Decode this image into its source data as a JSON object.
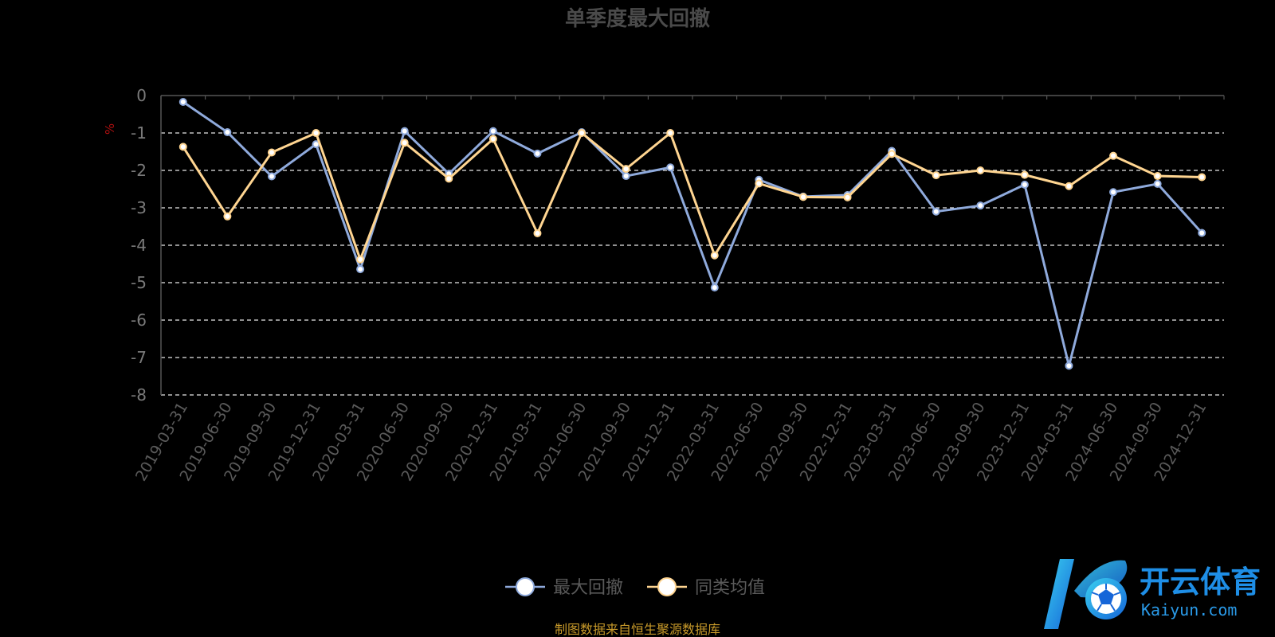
{
  "chart_data": {
    "type": "line",
    "title": "单季度最大回撤",
    "y_unit": "%",
    "ylim": [
      -8,
      0
    ],
    "yticks": [
      0,
      -1,
      -2,
      -3,
      -4,
      -5,
      -6,
      -7,
      -8
    ],
    "grid": true,
    "legend_position": "bottom-center",
    "categories": [
      "2019-03-31",
      "2019-06-30",
      "2019-09-30",
      "2019-12-31",
      "2020-03-31",
      "2020-06-30",
      "2020-09-30",
      "2020-12-31",
      "2021-03-31",
      "2021-06-30",
      "2021-09-30",
      "2021-12-31",
      "2022-03-31",
      "2022-06-30",
      "2022-09-30",
      "2022-12-31",
      "2023-03-31",
      "2023-06-30",
      "2023-09-30",
      "2023-12-31",
      "2024-03-31",
      "2024-06-30",
      "2024-09-30",
      "2024-12-31"
    ],
    "series": [
      {
        "name": "最大回撤",
        "color": "#8faadc",
        "values": [
          -0.17,
          -0.98,
          -2.16,
          -1.3,
          -4.64,
          -0.95,
          -2.09,
          -0.95,
          -1.55,
          -0.98,
          -2.15,
          -1.92,
          -5.13,
          -2.25,
          -2.7,
          -2.66,
          -1.48,
          -3.1,
          -2.94,
          -2.38,
          -7.22,
          -2.58,
          -2.36,
          -3.67
        ]
      },
      {
        "name": "同类均值",
        "color": "#ffd591",
        "values": [
          -1.37,
          -3.23,
          -1.52,
          -1.0,
          -4.38,
          -1.26,
          -2.22,
          -1.16,
          -3.68,
          -1.0,
          -1.96,
          -1.0,
          -4.27,
          -2.35,
          -2.71,
          -2.72,
          -1.56,
          -2.13,
          -2.0,
          -2.12,
          -2.42,
          -1.61,
          -2.15,
          -2.18
        ]
      }
    ]
  },
  "footer": {
    "source": "制图数据来自恒生聚源数据库"
  },
  "watermark": {
    "brand_cn": "开云体育",
    "brand_en": "Kaiyun.com",
    "logo_icon": "kaiyun-soccer-ball-logo",
    "colors": [
      "#1e8ee6",
      "#3ad0f0"
    ]
  }
}
